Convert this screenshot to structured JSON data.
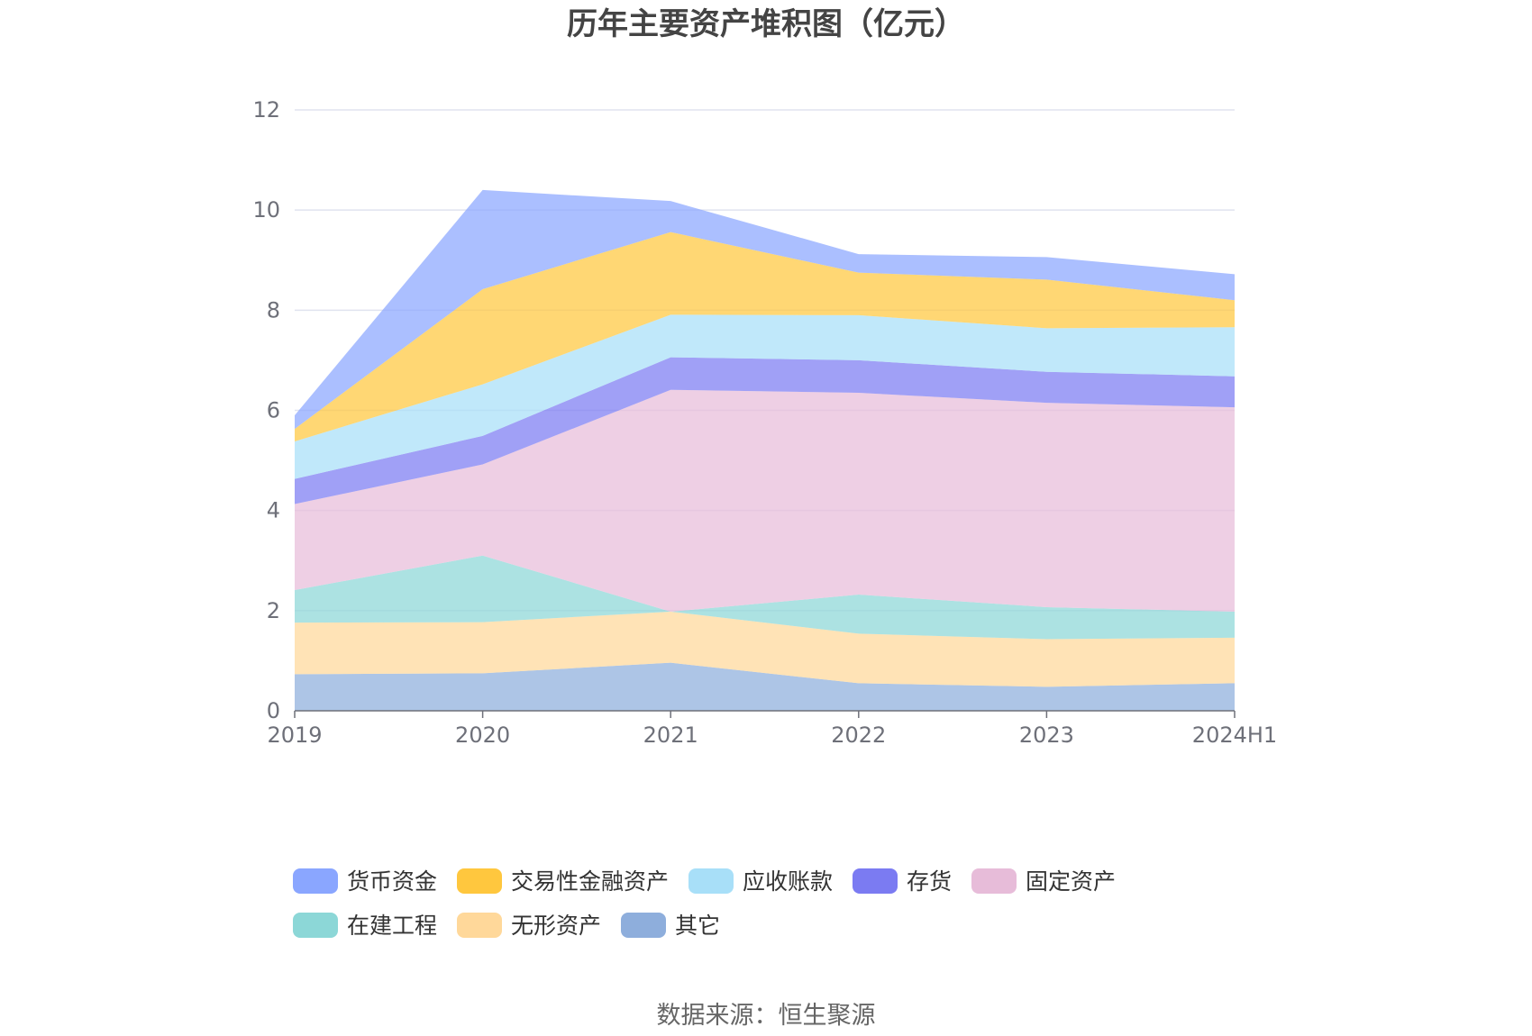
{
  "chart_data": {
    "type": "area",
    "stacked": true,
    "title": "历年主要资产堆积图（亿元）",
    "source": "数据来源：恒生聚源",
    "x": [
      "2019",
      "2020",
      "2021",
      "2022",
      "2023",
      "2024H1"
    ],
    "ylim": [
      0,
      12
    ],
    "yticks": [
      "0",
      "2",
      "4",
      "6",
      "8",
      "10",
      "12"
    ],
    "grid": true,
    "legend_position": "bottom",
    "series": [
      {
        "name": "其它",
        "color": "#8eaedc",
        "values": [
          0.73,
          0.75,
          0.96,
          0.55,
          0.48,
          0.55
        ]
      },
      {
        "name": "无形资产",
        "color": "#ffd89a",
        "values": [
          1.03,
          1.02,
          1.02,
          0.99,
          0.95,
          0.91
        ]
      },
      {
        "name": "在建工程",
        "color": "#8cd7d7",
        "values": [
          0.65,
          1.33,
          0.0,
          0.78,
          0.64,
          0.52
        ]
      },
      {
        "name": "固定资产",
        "color": "#e7bcd9",
        "values": [
          1.72,
          1.82,
          4.43,
          4.03,
          4.08,
          4.08
        ]
      },
      {
        "name": "存货",
        "color": "#7b7bf2",
        "values": [
          0.5,
          0.57,
          0.65,
          0.65,
          0.62,
          0.62
        ]
      },
      {
        "name": "应收账款",
        "color": "#a8dff8",
        "values": [
          0.75,
          1.03,
          0.85,
          0.9,
          0.87,
          0.98
        ]
      },
      {
        "name": "交易性金融资产",
        "color": "#ffc73e",
        "values": [
          0.25,
          1.9,
          1.65,
          0.85,
          0.97,
          0.54
        ]
      },
      {
        "name": "货币资金",
        "color": "#8aa6ff",
        "values": [
          0.27,
          1.98,
          0.62,
          0.37,
          0.45,
          0.52
        ]
      }
    ],
    "legend_order": [
      "货币资金",
      "交易性金融资产",
      "应收账款",
      "存货",
      "固定资产",
      "在建工程",
      "无形资产",
      "其它"
    ]
  }
}
